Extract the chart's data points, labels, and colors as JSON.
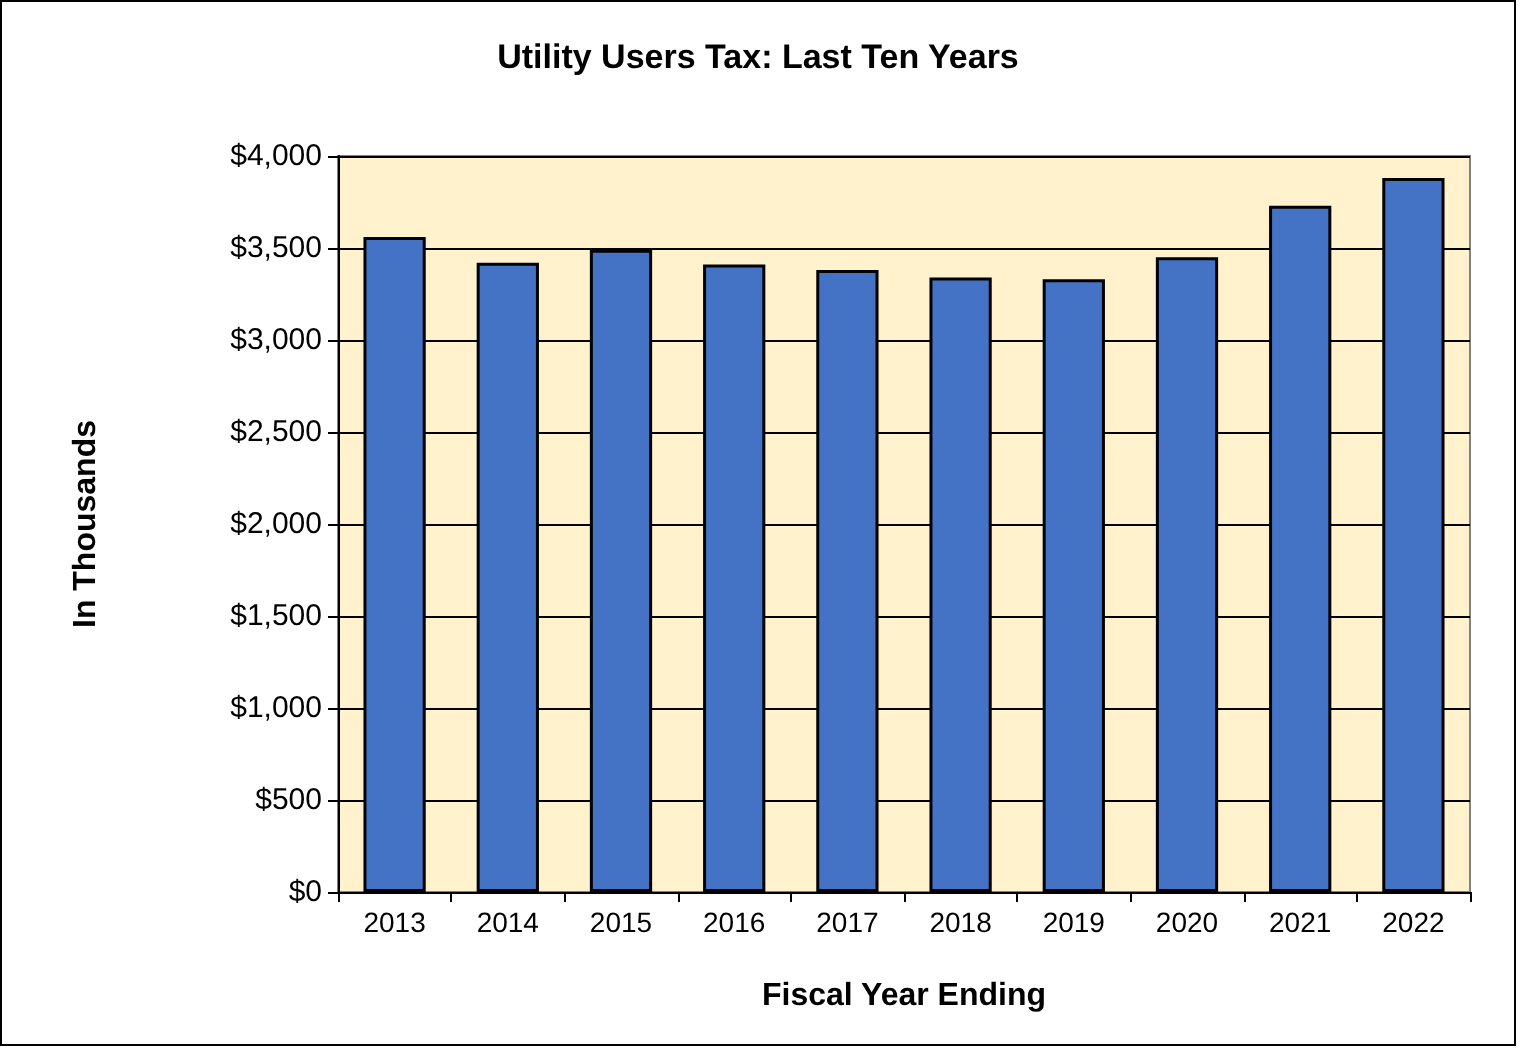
{
  "chart_data": {
    "type": "bar",
    "title": "Utility Users Tax: Last Ten Years",
    "xlabel": "Fiscal Year Ending",
    "ylabel": "In Thousands",
    "categories": [
      "2013",
      "2014",
      "2015",
      "2016",
      "2017",
      "2018",
      "2019",
      "2020",
      "2021",
      "2022"
    ],
    "values": [
      3560,
      3420,
      3490,
      3410,
      3380,
      3340,
      3330,
      3450,
      3730,
      3880
    ],
    "color": "#4472c4",
    "ylim": [
      0,
      4000
    ],
    "yticks": [
      {
        "value": 0,
        "label": "$0"
      },
      {
        "value": 500,
        "label": "$500"
      },
      {
        "value": 1000,
        "label": "$1,000"
      },
      {
        "value": 1500,
        "label": "$1,500"
      },
      {
        "value": 2000,
        "label": "$2,000"
      },
      {
        "value": 2500,
        "label": "$2,500"
      },
      {
        "value": 3000,
        "label": "$3,000"
      },
      {
        "value": 3500,
        "label": "$3,500"
      },
      {
        "value": 4000,
        "label": "$4,000"
      }
    ],
    "grid": "y"
  }
}
